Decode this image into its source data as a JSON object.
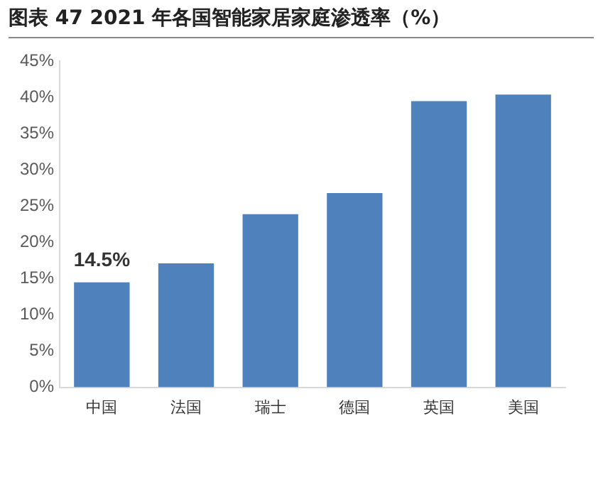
{
  "chart_data": {
    "type": "bar",
    "title": "图表 47 2021 年各国智能家居家庭渗透率（%）",
    "categories": [
      "中国",
      "法国",
      "瑞士",
      "德国",
      "英国",
      "美国"
    ],
    "values": [
      14.5,
      17.1,
      23.9,
      26.8,
      39.5,
      40.4
    ],
    "value_labels": [
      "14.5%",
      null,
      null,
      null,
      null,
      null
    ],
    "color": "#4f81bd",
    "ylim": [
      0,
      45
    ],
    "yticks": [
      {
        "value": 0,
        "label": "0%"
      },
      {
        "value": 5,
        "label": "5%"
      },
      {
        "value": 10,
        "label": "10%"
      },
      {
        "value": 15,
        "label": "15%"
      },
      {
        "value": 20,
        "label": "20%"
      },
      {
        "value": 25,
        "label": "25%"
      },
      {
        "value": 30,
        "label": "30%"
      },
      {
        "value": 35,
        "label": "35%"
      },
      {
        "value": 40,
        "label": "40%"
      },
      {
        "value": 45,
        "label": "45%"
      }
    ],
    "grid": false,
    "legend": false
  }
}
